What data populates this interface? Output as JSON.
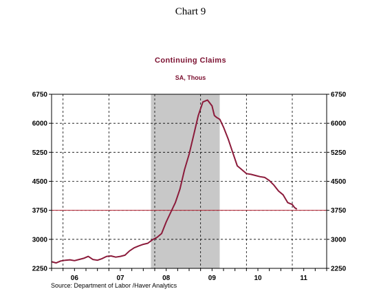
{
  "page_title": "Chart 9",
  "source": "Source:  Department of Labor /Haver Analytics",
  "chart_data": {
    "type": "line",
    "title": "Continuing Claims",
    "subtitle": "SA, Thous",
    "x_domain": [
      2005.75,
      2011.75
    ],
    "ylim": [
      2250,
      6750
    ],
    "y_ticks": [
      2250,
      3000,
      3750,
      4500,
      5250,
      6000,
      6750
    ],
    "x_labels": [
      {
        "label": "06",
        "x": 2006.25
      },
      {
        "label": "07",
        "x": 2007.25
      },
      {
        "label": "08",
        "x": 2008.25
      },
      {
        "label": "09",
        "x": 2009.25
      },
      {
        "label": "10",
        "x": 2010.25
      },
      {
        "label": "11",
        "x": 2011.25
      }
    ],
    "v_gridlines": [
      2006,
      2007,
      2008,
      2009,
      2010,
      2011
    ],
    "recession_shading": [
      2007.917,
      2009.417
    ],
    "reference_line": {
      "value": 3750,
      "color": "#b22030"
    },
    "grid": true,
    "line_color": "#8b1a3a",
    "series": [
      {
        "x": [
          2005.75,
          2005.85,
          2005.95,
          2006.05,
          2006.15,
          2006.25,
          2006.35,
          2006.45,
          2006.55,
          2006.65,
          2006.75,
          2006.85,
          2006.95,
          2007.05,
          2007.15,
          2007.25,
          2007.35,
          2007.45,
          2007.55,
          2007.65,
          2007.75,
          2007.85,
          2007.95,
          2008.05,
          2008.15,
          2008.25,
          2008.35,
          2008.45,
          2008.55,
          2008.65,
          2008.75,
          2008.85,
          2008.95,
          2009.05,
          2009.15,
          2009.25,
          2009.3,
          2009.35,
          2009.42,
          2009.5,
          2009.6,
          2009.7,
          2009.8,
          2009.9,
          2010.0,
          2010.1,
          2010.2,
          2010.3,
          2010.4,
          2010.5,
          2010.6,
          2010.7,
          2010.8,
          2010.9,
          2011.0,
          2011.05,
          2011.1
        ],
        "values": [
          2420,
          2390,
          2440,
          2460,
          2470,
          2450,
          2480,
          2510,
          2560,
          2480,
          2460,
          2500,
          2560,
          2570,
          2540,
          2560,
          2590,
          2700,
          2780,
          2830,
          2870,
          2900,
          2990,
          3050,
          3150,
          3450,
          3700,
          3950,
          4300,
          4800,
          5200,
          5700,
          6200,
          6550,
          6600,
          6450,
          6200,
          6150,
          6100,
          5900,
          5600,
          5250,
          4900,
          4800,
          4700,
          4680,
          4650,
          4620,
          4600,
          4520,
          4400,
          4250,
          4150,
          3950,
          3900,
          3820,
          3780
        ]
      }
    ]
  }
}
